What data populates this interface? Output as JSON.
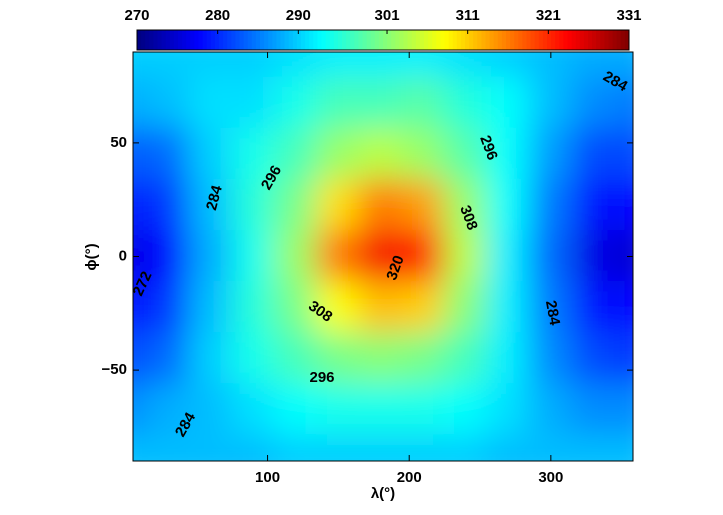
{
  "chart_data": {
    "type": "contour",
    "x_label": "λ(°)",
    "y_label": "ϕ(°)",
    "x": [
      0,
      30,
      60,
      90,
      120,
      150,
      180,
      210,
      240,
      270,
      300,
      330,
      360
    ],
    "y": [
      90,
      67.5,
      45,
      22.5,
      0,
      -22.5,
      -45,
      -67.5,
      -90
    ],
    "z": [
      [
        290,
        290,
        290,
        290,
        291,
        292,
        292,
        292,
        291,
        290,
        289,
        288,
        288
      ],
      [
        288,
        289,
        291,
        291,
        294,
        297,
        297,
        298,
        295,
        293,
        289,
        286,
        285
      ],
      [
        283,
        284,
        290,
        294,
        297,
        302,
        304,
        302,
        298,
        293,
        287,
        282,
        282
      ],
      [
        279,
        281,
        289,
        295,
        300,
        310,
        316,
        314,
        302,
        293,
        285,
        279,
        278
      ],
      [
        276,
        278,
        288,
        294,
        302,
        316,
        324,
        322,
        304,
        292,
        284,
        276,
        275
      ],
      [
        278,
        281,
        289,
        295,
        300,
        308,
        312,
        311,
        301,
        292,
        285,
        279,
        278
      ],
      [
        282,
        284,
        290,
        294,
        297,
        300,
        301,
        300,
        297,
        292,
        286,
        282,
        281
      ],
      [
        286,
        288,
        289,
        291,
        293,
        294,
        294,
        294,
        293,
        291,
        288,
        286,
        286
      ],
      [
        289,
        289,
        289,
        289,
        290,
        290,
        290,
        290,
        290,
        289,
        289,
        289,
        289
      ]
    ],
    "xlim": [
      5,
      358
    ],
    "ylim": [
      -90,
      90
    ],
    "xticks": [
      100,
      200,
      300
    ],
    "yticks": [
      {
        "value": -50,
        "label": "−50"
      },
      0,
      50
    ],
    "colorbar": {
      "lim": [
        270,
        331
      ],
      "ticks": [
        270,
        280,
        290,
        301,
        311,
        321,
        331
      ],
      "colormap": "jet"
    },
    "contour_levels": [
      272,
      284,
      296,
      308,
      320
    ]
  }
}
